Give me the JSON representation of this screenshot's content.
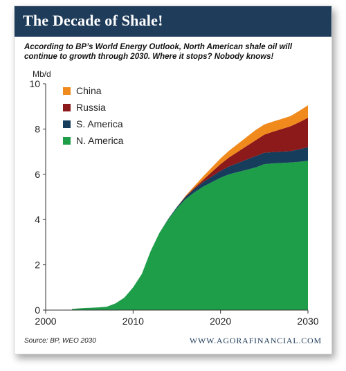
{
  "header": {
    "title": "The Decade of Shale!"
  },
  "subtitle": "According to BP’s World Energy Outlook, North American shale oil will continue to growth through 2030. Where it stops? Nobody knows!",
  "footer": {
    "source": "Source:  BP, WEO 2030",
    "website": "WWW.AGORAFINANCIAL.COM"
  },
  "colors": {
    "header_bg": "#1f3c5a",
    "north_america": "#1e9e48",
    "south_america": "#163d5c",
    "russia": "#8c1a1a",
    "china": "#f08a1c"
  },
  "chart_data": {
    "type": "area",
    "stacked": true,
    "ylabel": "Mb/d",
    "xlim": [
      2000,
      2030
    ],
    "ylim": [
      0,
      10
    ],
    "xticks": [
      2000,
      2010,
      2020,
      2030
    ],
    "yticks": [
      0,
      2,
      4,
      6,
      8,
      10
    ],
    "grid": false,
    "legend_position": "top-left",
    "x": [
      2003,
      2004,
      2005,
      2006,
      2007,
      2008,
      2009,
      2010,
      2011,
      2012,
      2013,
      2014,
      2015,
      2016,
      2017,
      2018,
      2019,
      2020,
      2021,
      2022,
      2023,
      2024,
      2025,
      2026,
      2027,
      2028,
      2029,
      2030
    ],
    "series": [
      {
        "name": "N. America",
        "color": "#1e9e48",
        "values": [
          0.05,
          0.08,
          0.1,
          0.12,
          0.15,
          0.3,
          0.55,
          1.0,
          1.6,
          2.6,
          3.4,
          4.0,
          4.5,
          4.9,
          5.2,
          5.45,
          5.65,
          5.85,
          6.0,
          6.1,
          6.2,
          6.3,
          6.45,
          6.48,
          6.5,
          6.52,
          6.55,
          6.6
        ]
      },
      {
        "name": "S. America",
        "color": "#163d5c",
        "values": [
          0,
          0,
          0,
          0,
          0,
          0,
          0,
          0,
          0,
          0,
          0,
          0.02,
          0.05,
          0.1,
          0.15,
          0.2,
          0.25,
          0.3,
          0.35,
          0.4,
          0.45,
          0.5,
          0.5,
          0.5,
          0.5,
          0.5,
          0.55,
          0.6
        ]
      },
      {
        "name": "Russia",
        "color": "#8c1a1a",
        "values": [
          0,
          0,
          0,
          0,
          0,
          0,
          0,
          0,
          0,
          0,
          0,
          0,
          0,
          0.02,
          0.05,
          0.1,
          0.2,
          0.3,
          0.4,
          0.5,
          0.6,
          0.7,
          0.8,
          0.9,
          1.0,
          1.1,
          1.2,
          1.3
        ]
      },
      {
        "name": "China",
        "color": "#f08a1c",
        "values": [
          0,
          0,
          0,
          0,
          0,
          0,
          0,
          0,
          0,
          0,
          0,
          0,
          0,
          0.03,
          0.08,
          0.15,
          0.2,
          0.25,
          0.3,
          0.35,
          0.4,
          0.45,
          0.45,
          0.45,
          0.45,
          0.45,
          0.5,
          0.55
        ]
      }
    ]
  }
}
